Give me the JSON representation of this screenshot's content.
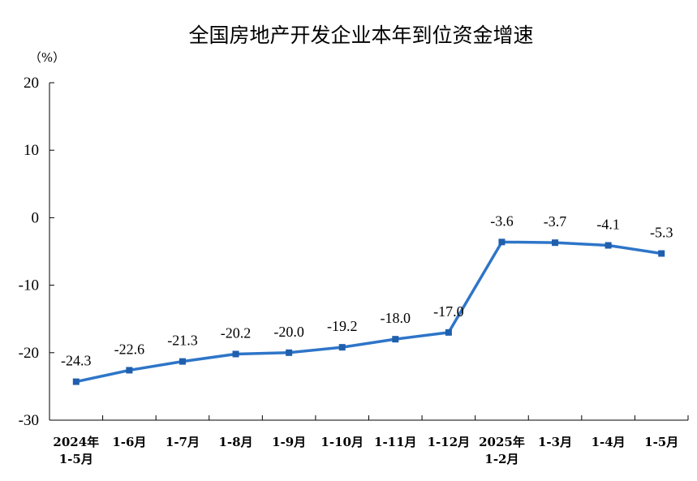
{
  "chart_data": {
    "type": "line",
    "title": "全国房地产开发企业本年到位资金增速",
    "ylabel": "（%）",
    "xlabel": "",
    "ylim": [
      -30,
      20
    ],
    "yticks": [
      20,
      10,
      0,
      -10,
      -20,
      -30
    ],
    "grid": false,
    "legend": "none",
    "categories": [
      [
        "2024年",
        "1-5月"
      ],
      [
        "1-6月"
      ],
      [
        "1-7月"
      ],
      [
        "1-8月"
      ],
      [
        "1-9月"
      ],
      [
        "1-10月"
      ],
      [
        "1-11月"
      ],
      [
        "1-12月"
      ],
      [
        "2025年",
        "1-2月"
      ],
      [
        "1-3月"
      ],
      [
        "1-4月"
      ],
      [
        "1-5月"
      ]
    ],
    "series": [
      {
        "values": [
          -24.3,
          -22.6,
          -21.3,
          -20.2,
          -20.0,
          -19.2,
          -18.0,
          -17.0,
          -3.6,
          -3.7,
          -4.1,
          -5.3
        ],
        "labels": [
          "-24.3",
          "-22.6",
          "-21.3",
          "-20.2",
          "-20.0",
          "-19.2",
          "-18.0",
          "-17.0",
          "-3.6",
          "-3.7",
          "-4.1",
          "-5.3"
        ],
        "color": "#2E75C8",
        "marker": "square"
      }
    ]
  }
}
